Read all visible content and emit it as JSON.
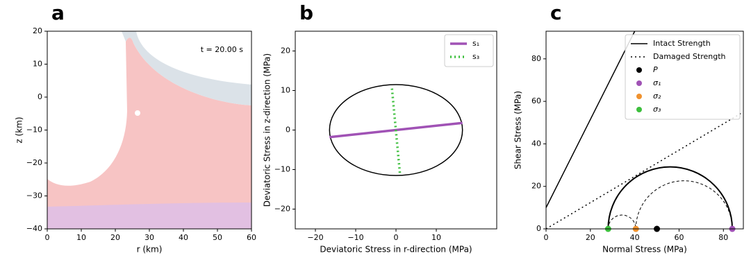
{
  "chart_data": [
    {
      "type": "image",
      "panel": "a",
      "xlabel": "r (km)",
      "ylabel": "z (km)",
      "annotation": "t =  20.00 s",
      "xlim": [
        0,
        60
      ],
      "xticks": [
        0,
        10,
        20,
        30,
        40,
        50,
        60
      ],
      "ylim": [
        -40,
        20
      ],
      "yticks": [
        {
          "value": -40,
          "label": "−40"
        },
        {
          "value": -30,
          "label": "−30"
        },
        {
          "value": -20,
          "label": "−20"
        },
        {
          "value": -10,
          "label": "−10"
        },
        0,
        10,
        20
      ]
    },
    {
      "type": "line",
      "panel": "b",
      "xlabel": "Deviatoric Stress in r-direction (MPa)",
      "ylabel": "Deviatoric Stress in z-direction (MPa)",
      "xlim": [
        -25,
        25
      ],
      "xticks": [
        {
          "value": -20,
          "label": "−20"
        },
        {
          "value": -10,
          "label": "−10"
        },
        0,
        10
      ],
      "ylim": [
        -25,
        25
      ],
      "yticks": [
        {
          "value": -20,
          "label": "−20"
        },
        {
          "value": -10,
          "label": "−10"
        },
        0,
        10,
        20
      ],
      "ellipse": {
        "center": [
          0,
          0
        ],
        "radii": [
          16.5,
          11.5
        ],
        "color": "#000000"
      },
      "series": [
        {
          "name": "s₁",
          "color": "#a052b5",
          "style": "solid",
          "x": [
            -16.5,
            16.5
          ],
          "y": [
            -1.8,
            1.8
          ]
        },
        {
          "name": "s₃",
          "color": "#3dbf3d",
          "style": "dotted",
          "x": [
            -1,
            1
          ],
          "y": [
            10.5,
            -11.3
          ]
        }
      ],
      "legend": "upper right"
    },
    {
      "type": "mohr",
      "panel": "c",
      "xlabel": "Normal Stress (MPa)",
      "ylabel": "Shear Stress (MPa)",
      "xlim": [
        0,
        89
      ],
      "xticks": [
        0,
        20,
        40,
        60,
        80
      ],
      "ylim": [
        0,
        93
      ],
      "yticks": [
        0,
        20,
        40,
        60,
        80
      ],
      "lines": [
        {
          "name": "Intact Strength",
          "color": "#000000",
          "style": "solid",
          "x": [
            0,
            40
          ],
          "y": [
            10,
            93
          ]
        },
        {
          "name": "Damaged Strength",
          "color": "#000000",
          "style": "dotted",
          "x": [
            0,
            89
          ],
          "y": [
            0,
            55
          ]
        }
      ],
      "points": [
        {
          "name": "P",
          "color": "#000000",
          "x": 50,
          "y": 0
        },
        {
          "name": "σ₁",
          "color": "#a052b5",
          "x": 84,
          "y": 0
        },
        {
          "name": "σ₂",
          "color": "#f0922e",
          "x": 40.5,
          "y": 0
        },
        {
          "name": "σ₃",
          "color": "#3dbf3d",
          "x": 28,
          "y": 0
        }
      ],
      "legend": "upper right"
    }
  ]
}
